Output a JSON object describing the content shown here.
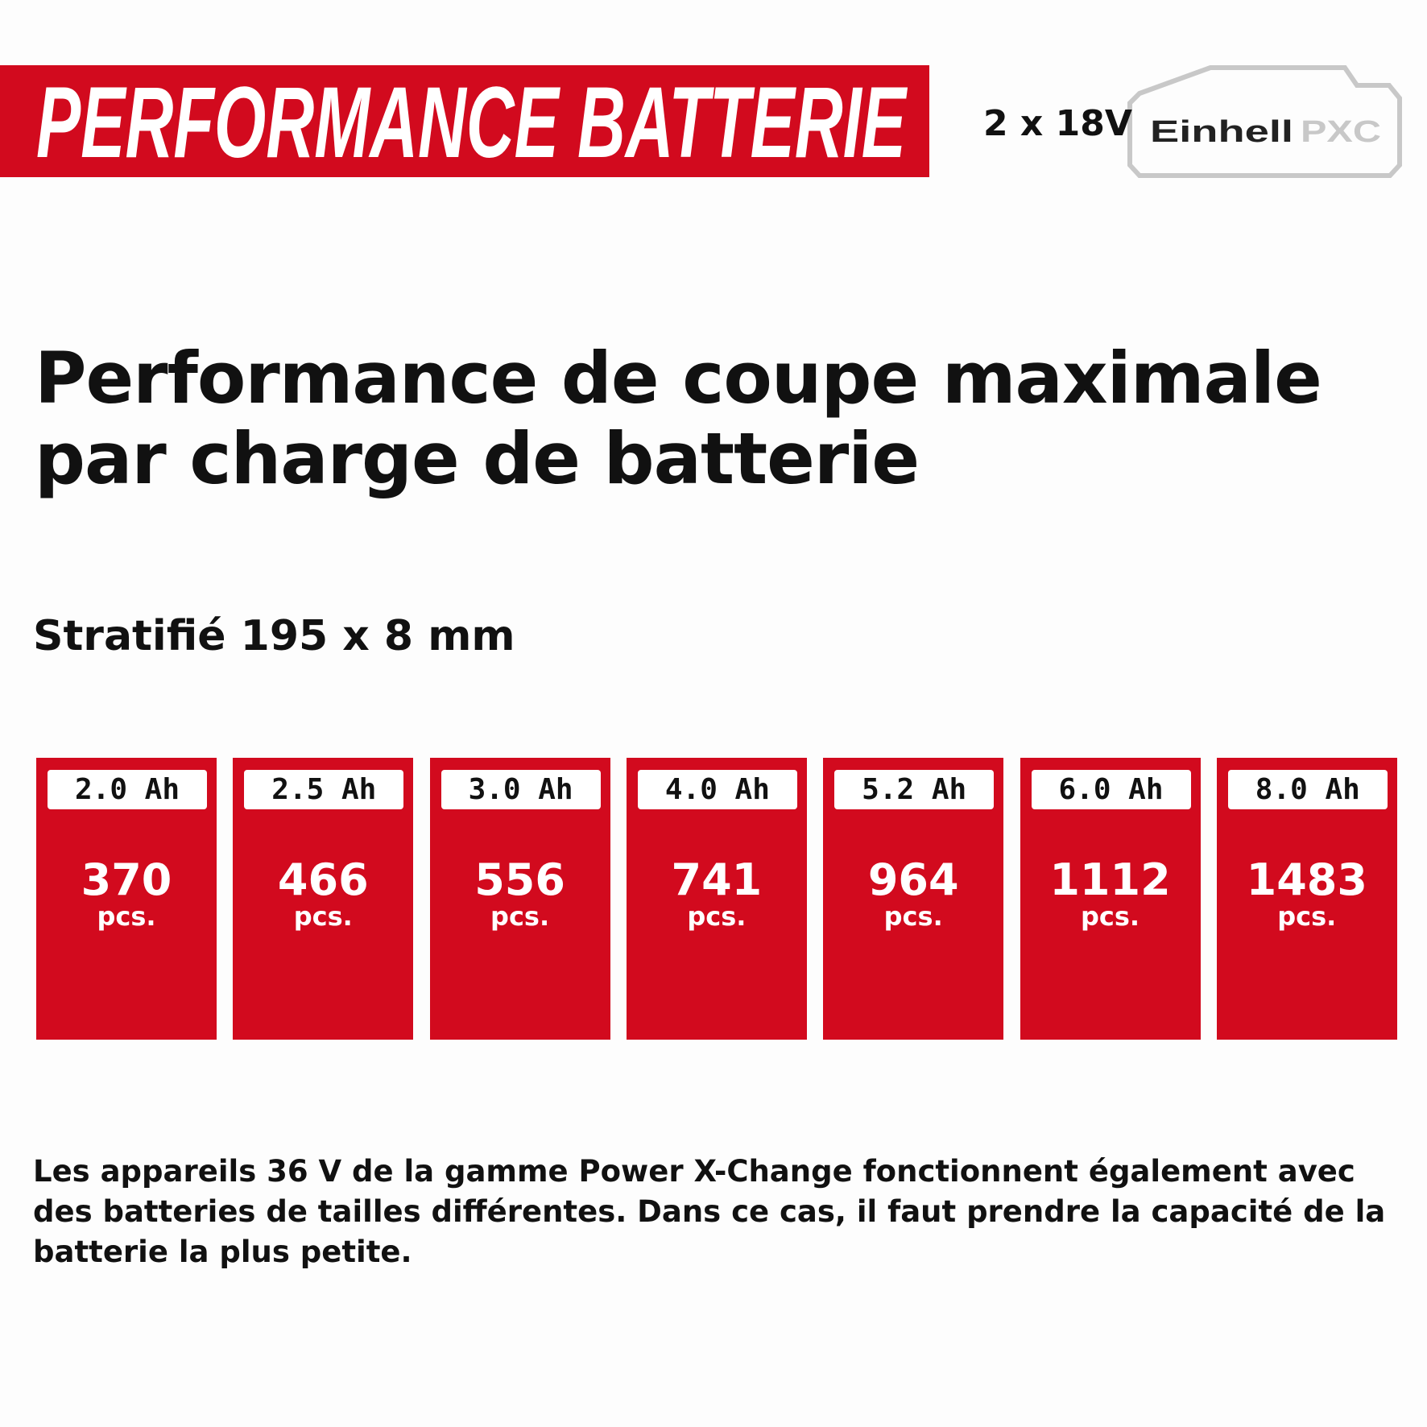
{
  "header": {
    "title": "PERFORMANCE BATTERIE",
    "voltage": "2 x 18V",
    "logo_brand": "Einhell",
    "logo_suffix": "PXC"
  },
  "heading": {
    "lines": [
      "Performance de coupe maximale",
      "par charge de batterie"
    ]
  },
  "subtitle": "Stratifié 195 x 8 mm",
  "cards": [
    {
      "label": "2.0 Ah",
      "value": 370,
      "unit": "pcs."
    },
    {
      "label": "2.5 Ah",
      "value": 466,
      "unit": "pcs."
    },
    {
      "label": "3.0 Ah",
      "value": 556,
      "unit": "pcs."
    },
    {
      "label": "4.0 Ah",
      "value": 741,
      "unit": "pcs."
    },
    {
      "label": "5.2 Ah",
      "value": 964,
      "unit": "pcs."
    },
    {
      "label": "6.0 Ah",
      "value": 1112,
      "unit": "pcs."
    },
    {
      "label": "8.0 Ah",
      "value": 1483,
      "unit": "pcs."
    }
  ],
  "footnote": "Les appareils 36 V de la gamme Power X-Change fonctionnent également avec des batteries de tailles différentes. Dans ce cas, il faut prendre la capacité de la batterie la plus petite."
}
